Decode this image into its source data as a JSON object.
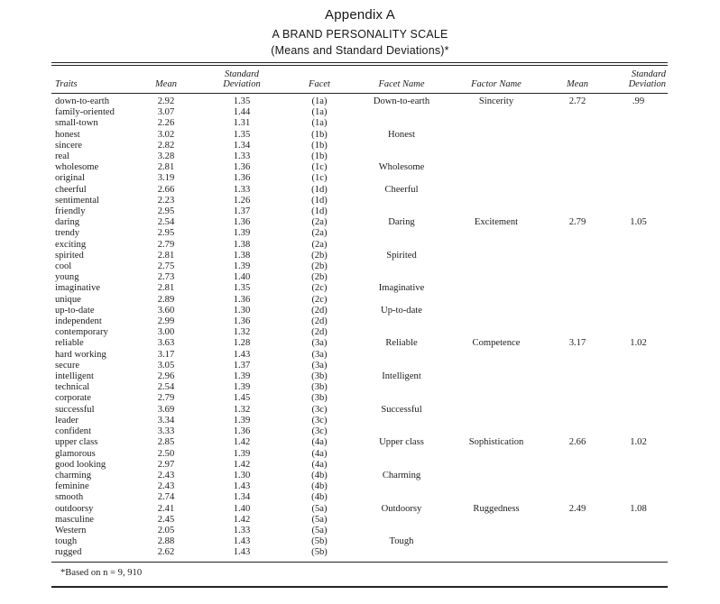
{
  "title": {
    "appendix": "Appendix A",
    "scale": "A BRAND PERSONALITY SCALE",
    "subtitle": "(Means and Standard Deviations)*"
  },
  "table": {
    "columns": [
      "Traits",
      "Mean",
      "Standard\nDeviation",
      "Facet",
      "Facet Name",
      "Factor Name",
      "Mean",
      "Standard\nDeviation"
    ],
    "rows": [
      [
        "down-to-earth",
        "2.92",
        "1.35",
        "(1a)",
        "Down-to-earth",
        "Sincerity",
        "2.72",
        ".99"
      ],
      [
        "family-oriented",
        "3.07",
        "1.44",
        "(1a)",
        "",
        "",
        "",
        ""
      ],
      [
        "small-town",
        "2.26",
        "1.31",
        "(1a)",
        "",
        "",
        "",
        ""
      ],
      [
        "honest",
        "3.02",
        "1.35",
        "(1b)",
        "Honest",
        "",
        "",
        ""
      ],
      [
        "sincere",
        "2.82",
        "1.34",
        "(1b)",
        "",
        "",
        "",
        ""
      ],
      [
        "real",
        "3.28",
        "1.33",
        "(1b)",
        "",
        "",
        "",
        ""
      ],
      [
        "wholesome",
        "2.81",
        "1.36",
        "(1c)",
        "Wholesome",
        "",
        "",
        ""
      ],
      [
        "original",
        "3.19",
        "1.36",
        "(1c)",
        "",
        "",
        "",
        ""
      ],
      [
        "cheerful",
        "2.66",
        "1.33",
        "(1d)",
        "Cheerful",
        "",
        "",
        ""
      ],
      [
        "sentimental",
        "2.23",
        "1.26",
        "(1d)",
        "",
        "",
        "",
        ""
      ],
      [
        "friendly",
        "2.95",
        "1.37",
        "(1d)",
        "",
        "",
        "",
        ""
      ],
      [
        "daring",
        "2.54",
        "1.36",
        "(2a)",
        "Daring",
        "Excitement",
        "2.79",
        "1.05"
      ],
      [
        "trendy",
        "2.95",
        "1.39",
        "(2a)",
        "",
        "",
        "",
        ""
      ],
      [
        "exciting",
        "2.79",
        "1.38",
        "(2a)",
        "",
        "",
        "",
        ""
      ],
      [
        "spirited",
        "2.81",
        "1.38",
        "(2b)",
        "Spirited",
        "",
        "",
        ""
      ],
      [
        "cool",
        "2.75",
        "1.39",
        "(2b)",
        "",
        "",
        "",
        ""
      ],
      [
        "young",
        "2.73",
        "1.40",
        "(2b)",
        "",
        "",
        "",
        ""
      ],
      [
        "imaginative",
        "2.81",
        "1.35",
        "(2c)",
        "Imaginative",
        "",
        "",
        ""
      ],
      [
        "unique",
        "2.89",
        "1.36",
        "(2c)",
        "",
        "",
        "",
        ""
      ],
      [
        "up-to-date",
        "3.60",
        "1.30",
        "(2d)",
        "Up-to-date",
        "",
        "",
        ""
      ],
      [
        "independent",
        "2.99",
        "1.36",
        "(2d)",
        "",
        "",
        "",
        ""
      ],
      [
        "contemporary",
        "3.00",
        "1.32",
        "(2d)",
        "",
        "",
        "",
        ""
      ],
      [
        "reliable",
        "3.63",
        "1.28",
        "(3a)",
        "Reliable",
        "Competence",
        "3.17",
        "1.02"
      ],
      [
        "hard working",
        "3.17",
        "1.43",
        "(3a)",
        "",
        "",
        "",
        ""
      ],
      [
        "secure",
        "3.05",
        "1.37",
        "(3a)",
        "",
        "",
        "",
        ""
      ],
      [
        "intelligent",
        "2.96",
        "1.39",
        "(3b)",
        "Intelligent",
        "",
        "",
        ""
      ],
      [
        "technical",
        "2.54",
        "1.39",
        "(3b)",
        "",
        "",
        "",
        ""
      ],
      [
        "corporate",
        "2.79",
        "1.45",
        "(3b)",
        "",
        "",
        "",
        ""
      ],
      [
        "successful",
        "3.69",
        "1.32",
        "(3c)",
        "Successful",
        "",
        "",
        ""
      ],
      [
        "leader",
        "3.34",
        "1.39",
        "(3c)",
        "",
        "",
        "",
        ""
      ],
      [
        "confident",
        "3.33",
        "1.36",
        "(3c)",
        "",
        "",
        "",
        ""
      ],
      [
        "upper class",
        "2.85",
        "1.42",
        "(4a)",
        "Upper class",
        "Sophistication",
        "2.66",
        "1.02"
      ],
      [
        "glamorous",
        "2.50",
        "1.39",
        "(4a)",
        "",
        "",
        "",
        ""
      ],
      [
        "good looking",
        "2.97",
        "1.42",
        "(4a)",
        "",
        "",
        "",
        ""
      ],
      [
        "charming",
        "2.43",
        "1.30",
        "(4b)",
        "Charming",
        "",
        "",
        ""
      ],
      [
        "feminine",
        "2.43",
        "1.43",
        "(4b)",
        "",
        "",
        "",
        ""
      ],
      [
        "smooth",
        "2.74",
        "1.34",
        "(4b)",
        "",
        "",
        "",
        ""
      ],
      [
        "outdoorsy",
        "2.41",
        "1.40",
        "(5a)",
        "Outdoorsy",
        "Ruggedness",
        "2.49",
        "1.08"
      ],
      [
        "masculine",
        "2.45",
        "1.42",
        "(5a)",
        "",
        "",
        "",
        ""
      ],
      [
        "Western",
        "2.05",
        "1.33",
        "(5a)",
        "",
        "",
        "",
        ""
      ],
      [
        "tough",
        "2.88",
        "1.43",
        "(5b)",
        "Tough",
        "",
        "",
        ""
      ],
      [
        "rugged",
        "2.62",
        "1.43",
        "(5b)",
        "",
        "",
        "",
        ""
      ]
    ],
    "footnote": "*Based on n = 9, 910"
  },
  "colors": {
    "text": "#1c1c1c",
    "rule": "#222222",
    "background": "#ffffff"
  }
}
